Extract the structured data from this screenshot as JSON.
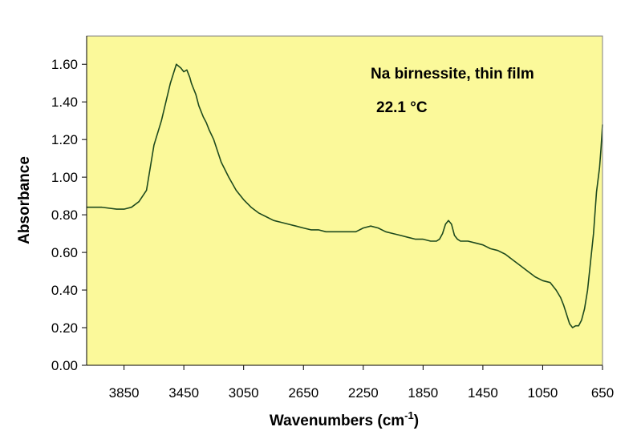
{
  "chart_data": {
    "type": "line",
    "title": "",
    "xlabel": "Wavenumbers (cm",
    "xlabel_sup": "-1",
    "xlabel_close": ")",
    "ylabel": "Absorbance",
    "xlim": [
      4100,
      650
    ],
    "ylim": [
      0,
      1.75
    ],
    "x_reversed": true,
    "grid": false,
    "plot_bg": "#FBF99A",
    "line_color": "#1E4A1E",
    "annotations": [
      "Na birnessite, thin film",
      "22.1 °C"
    ],
    "x_ticks": [
      3850,
      3450,
      3050,
      2650,
      2250,
      1850,
      1450,
      1050,
      650
    ],
    "y_ticks": [
      "0.00",
      "0.20",
      "0.40",
      "0.60",
      "0.80",
      "1.00",
      "1.20",
      "1.40",
      "1.60"
    ],
    "series": [
      {
        "x": [
          4100,
          4000,
          3900,
          3850,
          3800,
          3750,
          3700,
          3650,
          3600,
          3570,
          3540,
          3500,
          3470,
          3450,
          3430,
          3410,
          3400,
          3390,
          3370,
          3350,
          3320,
          3300,
          3280,
          3250,
          3200,
          3150,
          3100,
          3050,
          3000,
          2950,
          2900,
          2850,
          2800,
          2750,
          2700,
          2650,
          2600,
          2550,
          2500,
          2450,
          2400,
          2350,
          2300,
          2250,
          2200,
          2150,
          2100,
          2050,
          2000,
          1950,
          1900,
          1850,
          1800,
          1780,
          1760,
          1740,
          1720,
          1700,
          1680,
          1660,
          1640,
          1620,
          1600,
          1550,
          1500,
          1450,
          1400,
          1350,
          1300,
          1250,
          1200,
          1150,
          1100,
          1050,
          1000,
          960,
          930,
          910,
          890,
          870,
          850,
          830,
          810,
          790,
          770,
          750,
          730,
          710,
          690,
          670,
          660,
          650
        ],
        "y": [
          0.84,
          0.84,
          0.83,
          0.83,
          0.84,
          0.87,
          0.93,
          1.17,
          1.3,
          1.4,
          1.5,
          1.6,
          1.58,
          1.56,
          1.57,
          1.53,
          1.5,
          1.48,
          1.44,
          1.38,
          1.32,
          1.29,
          1.25,
          1.2,
          1.08,
          1.0,
          0.93,
          0.88,
          0.84,
          0.81,
          0.79,
          0.77,
          0.76,
          0.75,
          0.74,
          0.73,
          0.72,
          0.72,
          0.71,
          0.71,
          0.71,
          0.71,
          0.71,
          0.73,
          0.74,
          0.73,
          0.71,
          0.7,
          0.69,
          0.68,
          0.67,
          0.67,
          0.66,
          0.66,
          0.66,
          0.67,
          0.7,
          0.75,
          0.77,
          0.75,
          0.69,
          0.67,
          0.66,
          0.66,
          0.65,
          0.64,
          0.62,
          0.61,
          0.59,
          0.56,
          0.53,
          0.5,
          0.47,
          0.45,
          0.44,
          0.4,
          0.36,
          0.32,
          0.27,
          0.22,
          0.2,
          0.21,
          0.21,
          0.24,
          0.3,
          0.4,
          0.55,
          0.7,
          0.92,
          1.05,
          1.15,
          1.28
        ]
      }
    ]
  }
}
